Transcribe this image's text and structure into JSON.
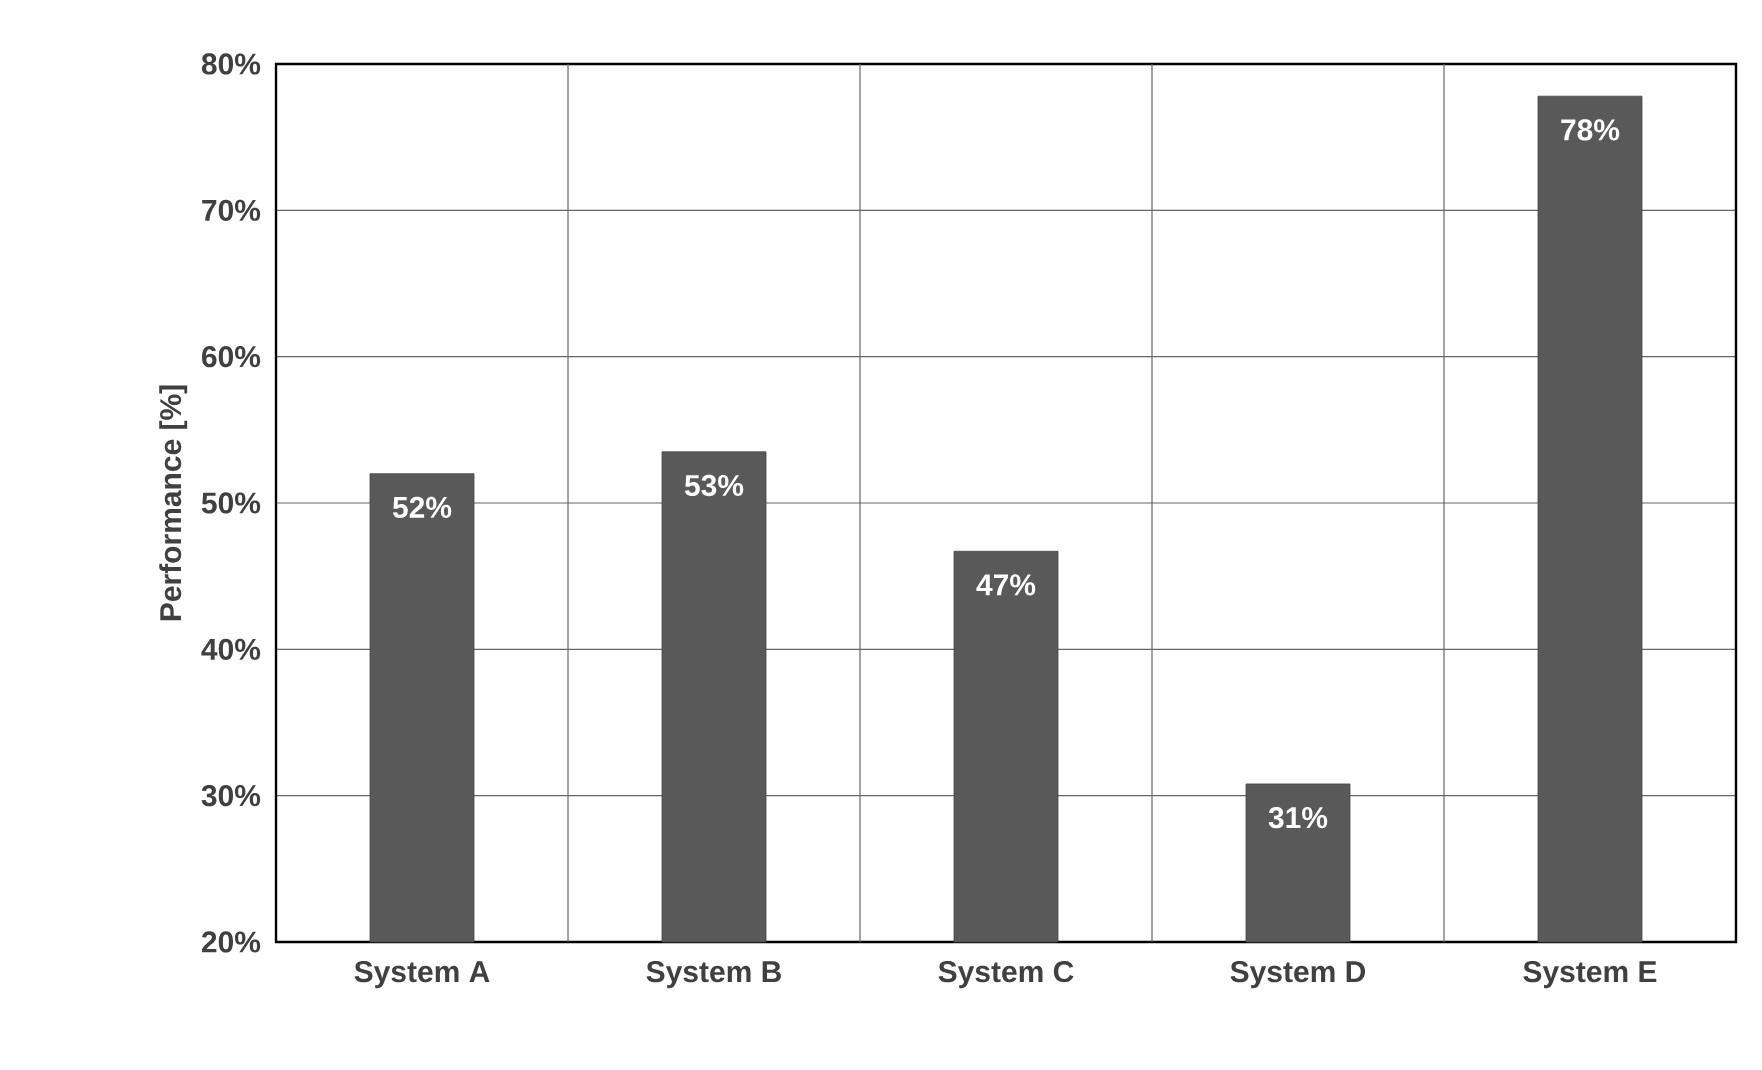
{
  "chart_data": {
    "type": "bar",
    "ylabel": "Performance [%]",
    "categories": [
      "System A",
      "System B",
      "System C",
      "System D",
      "System E"
    ],
    "values": [
      52,
      53.5,
      46.7,
      30.8,
      77.8
    ],
    "value_labels": [
      "52%",
      "53%",
      "47%",
      "31%",
      "78%"
    ],
    "color": "#595959",
    "ylim": [
      20,
      80
    ],
    "yticks": [
      {
        "value": 20,
        "label": "20%"
      },
      {
        "value": 30,
        "label": "30%"
      },
      {
        "value": 40,
        "label": "40%"
      },
      {
        "value": 50,
        "label": "50%"
      },
      {
        "value": 60,
        "label": "60%"
      },
      {
        "value": 70,
        "label": "70%"
      },
      {
        "value": 80,
        "label": "80%"
      }
    ],
    "grid": true
  }
}
